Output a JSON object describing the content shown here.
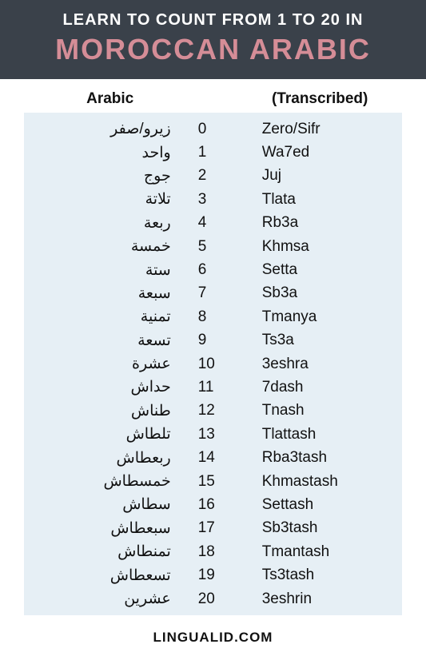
{
  "header": {
    "line1": "LEARN TO COUNT FROM 1 TO 20 IN",
    "line2": "MOROCCAN ARABIC",
    "bg_color": "#3a414a",
    "line1_color": "#ffffff",
    "line2_color": "#d58d97",
    "line1_fontsize": 20,
    "line2_fontsize": 36
  },
  "columns": {
    "arabic": "Arabic",
    "transcribed": "(Transcribed)"
  },
  "table": {
    "bg_color": "#e6eff5",
    "text_color": "#111111",
    "row_fontsize": 19,
    "header_fontsize": 19
  },
  "rows": [
    {
      "arabic": "زيرو/صفر",
      "num": "0",
      "trans": "Zero/Sifr"
    },
    {
      "arabic": "واحد",
      "num": "1",
      "trans": "Wa7ed"
    },
    {
      "arabic": "جوج",
      "num": "2",
      "trans": "Juj"
    },
    {
      "arabic": "تلاتة",
      "num": "3",
      "trans": "Tlata"
    },
    {
      "arabic": "ربعة",
      "num": "4",
      "trans": "Rb3a"
    },
    {
      "arabic": "خمسة",
      "num": "5",
      "trans": "Khmsa"
    },
    {
      "arabic": "ستة",
      "num": "6",
      "trans": "Setta"
    },
    {
      "arabic": "سبعة",
      "num": "7",
      "trans": "Sb3a"
    },
    {
      "arabic": "تمنية",
      "num": "8",
      "trans": "Tmanya"
    },
    {
      "arabic": "تسعة",
      "num": "9",
      "trans": "Ts3a"
    },
    {
      "arabic": "عشرة",
      "num": "10",
      "trans": "3eshra"
    },
    {
      "arabic": "حداش",
      "num": "11",
      "trans": "7dash"
    },
    {
      "arabic": "طناش",
      "num": "12",
      "trans": "Tnash"
    },
    {
      "arabic": "تلطاش",
      "num": "13",
      "trans": "Tlattash"
    },
    {
      "arabic": "ربعطاش",
      "num": "14",
      "trans": "Rba3tash"
    },
    {
      "arabic": "خمسطاش",
      "num": "15",
      "trans": "Khmastash"
    },
    {
      "arabic": "سطاش",
      "num": "16",
      "trans": "Settash"
    },
    {
      "arabic": "سبعطاش",
      "num": "17",
      "trans": "Sb3tash"
    },
    {
      "arabic": "تمنطاش",
      "num": "18",
      "trans": "Tmantash"
    },
    {
      "arabic": "تسعطاش",
      "num": "19",
      "trans": "Ts3tash"
    },
    {
      "arabic": "عشرين",
      "num": "20",
      "trans": "3eshrin"
    }
  ],
  "footer": {
    "text": "LINGUALID.COM",
    "fontsize": 17,
    "color": "#111111"
  }
}
